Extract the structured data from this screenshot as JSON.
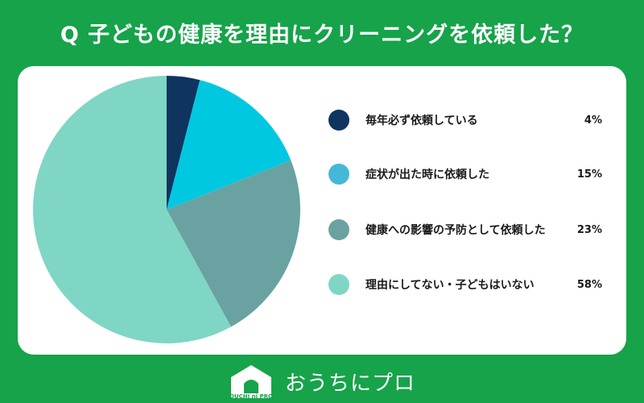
{
  "title": "Q 子どもの健康を理由にクリーニングを依頼した？",
  "chart_data": {
    "type": "pie",
    "title": "Q 子どもの健康を理由にクリーニングを依頼した？",
    "slices": [
      {
        "label": "毎年必ず依頼している",
        "value": 4,
        "display": "4%",
        "color": "#0f3460"
      },
      {
        "label": "症状が出た時に依頼した",
        "value": 15,
        "display": "15%",
        "color": "#00c8e0"
      },
      {
        "label": "健康への影響の予防として依頼した",
        "value": 23,
        "display": "23%",
        "color": "#6aa2a2"
      },
      {
        "label": "理由にしてない・子どもはいない",
        "value": 58,
        "display": "58%",
        "color": "#7fd6c4"
      }
    ],
    "legend_position": "right",
    "legend_dot_colors": [
      "#0f3460",
      "#45b8d8",
      "#6aa2a2",
      "#7fd6c4"
    ]
  },
  "footer": {
    "brand": "おうちにプロ",
    "logo_caption": "OUCHI ni PRO"
  }
}
